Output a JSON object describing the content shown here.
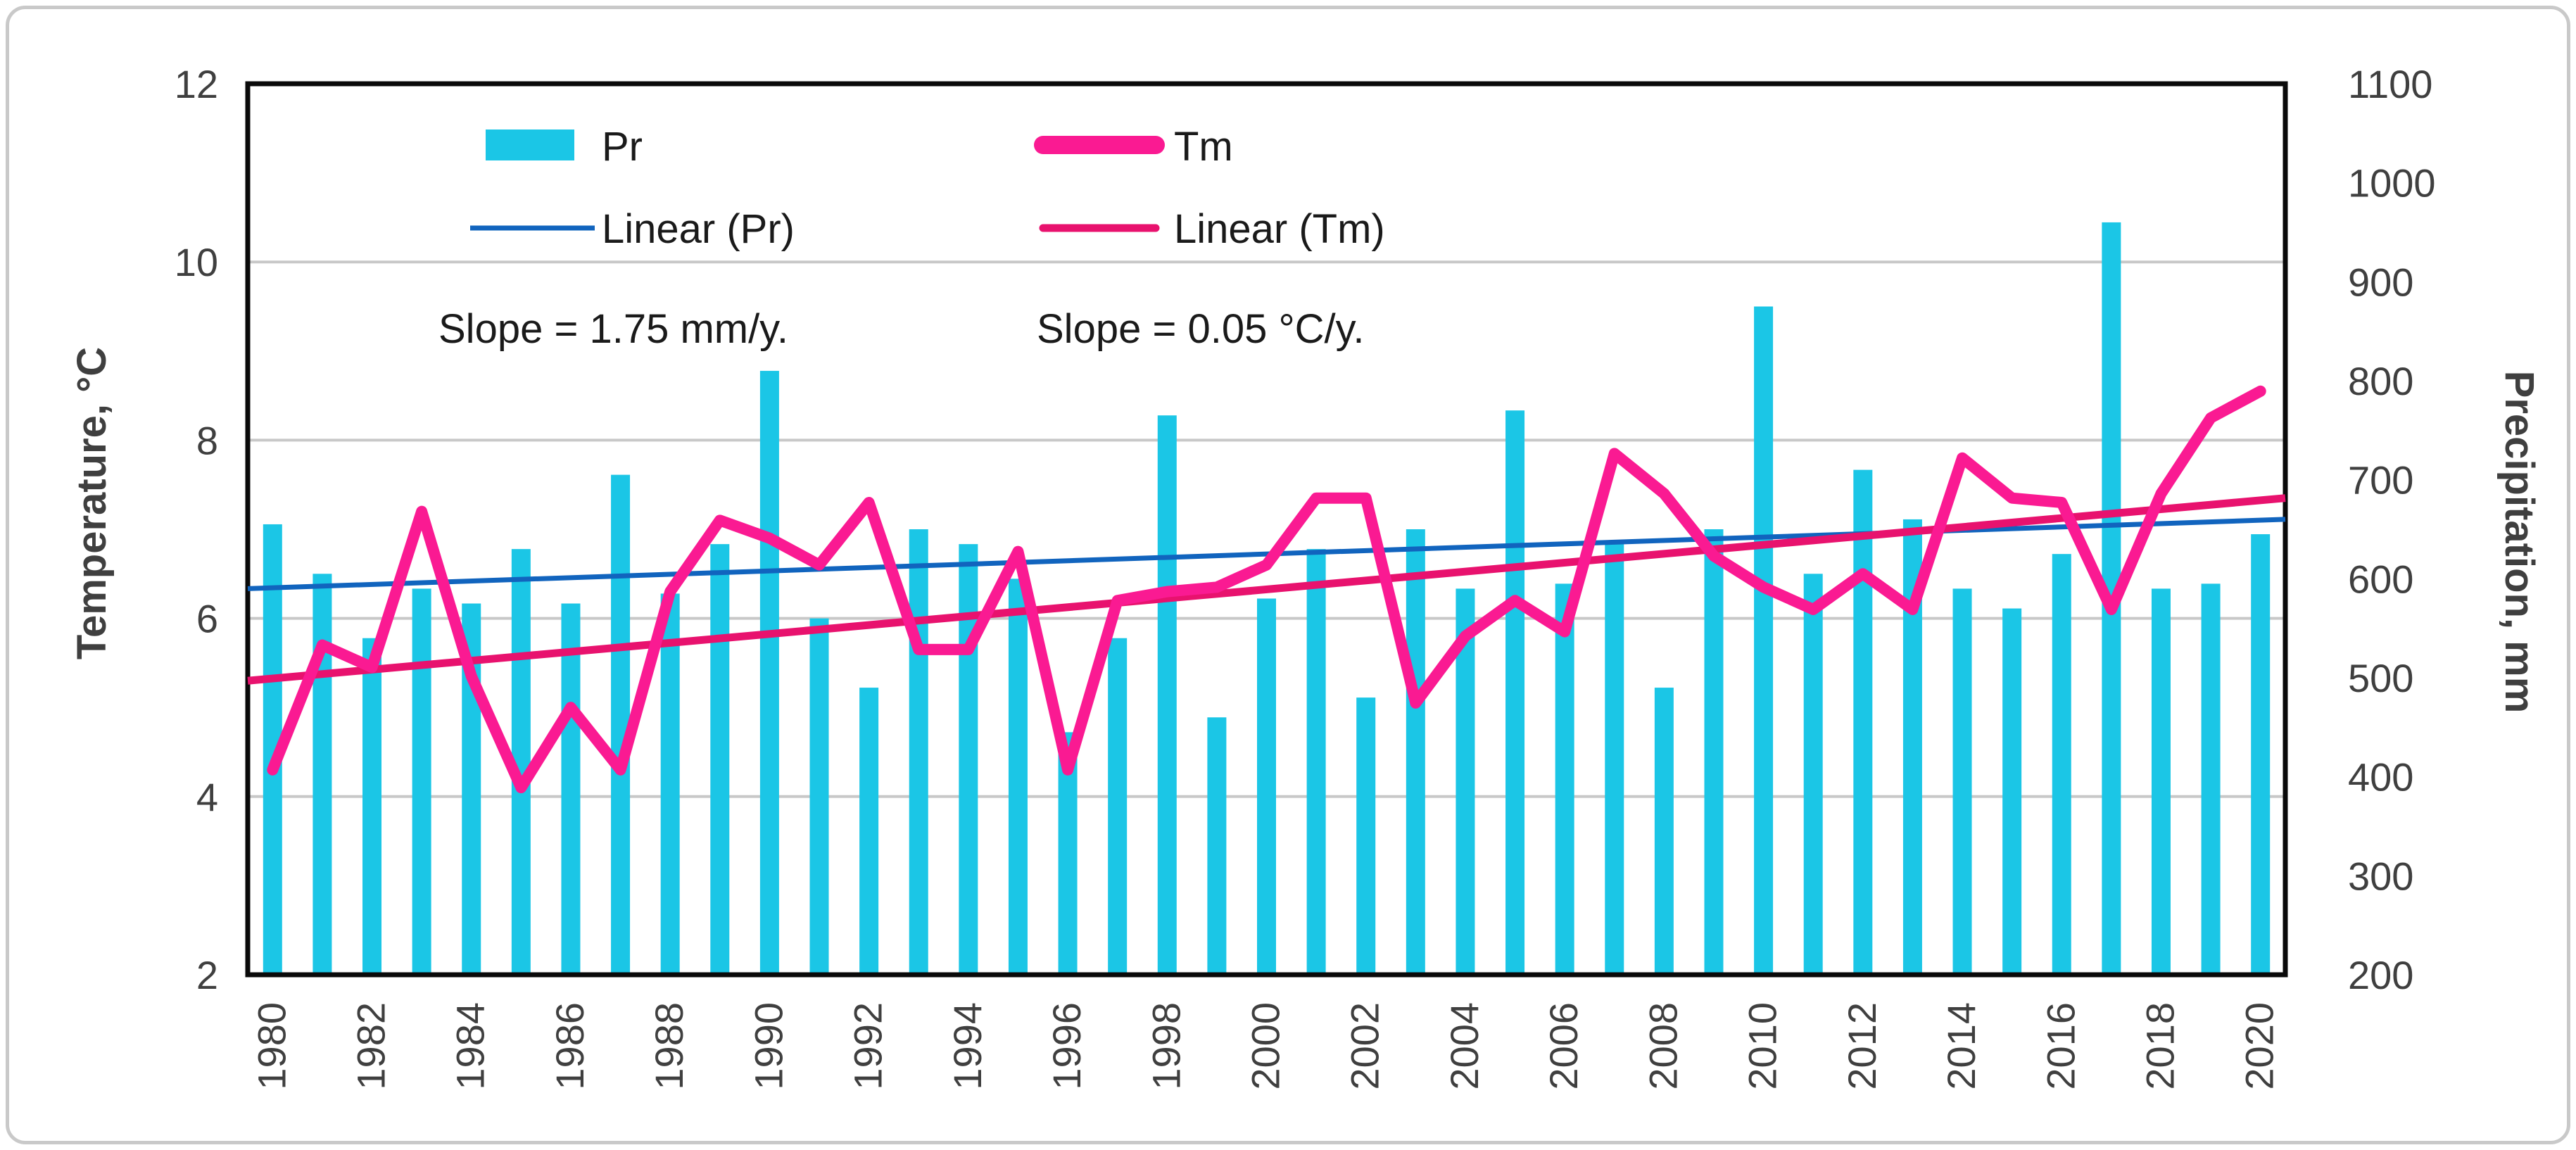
{
  "figure": {
    "background": "#ffffff",
    "border_color": "#c9c9c9"
  },
  "colors": {
    "bar": "#1bc6e6",
    "tm_line": "#fa1a92",
    "linear_pr": "#1164be",
    "linear_tm": "#e8126e",
    "gridline": "#c8c8c8",
    "frame": "#0a0a0a",
    "tick_text": "#3f3f3f",
    "annotation_text": "#1a1a1a"
  },
  "legend": {
    "pr_label": "Pr",
    "tm_label": "Tm",
    "linear_pr_label": "Linear (Pr)",
    "linear_tm_label": "Linear (Tm)"
  },
  "annotations": {
    "pr_slope_text": "Slope = 1.75 mm/y.",
    "tm_slope_text": "Slope = 0.05 °C/y."
  },
  "axes": {
    "left_title": "Temperature, °C",
    "right_title": "Precipitation, mm"
  },
  "chart_data": {
    "type": "combo-bar-line",
    "title": "",
    "x": [
      1980,
      1981,
      1982,
      1983,
      1984,
      1985,
      1986,
      1987,
      1988,
      1989,
      1990,
      1991,
      1992,
      1993,
      1994,
      1995,
      1996,
      1997,
      1998,
      1999,
      2000,
      2001,
      2002,
      2003,
      2004,
      2005,
      2006,
      2007,
      2008,
      2009,
      2010,
      2011,
      2012,
      2013,
      2014,
      2015,
      2016,
      2017,
      2018,
      2019,
      2020
    ],
    "x_tick_step": 2,
    "left_axis": {
      "label": "Temperature, °C",
      "min": 2,
      "max": 12,
      "ticks": [
        2,
        4,
        6,
        8,
        10,
        12
      ]
    },
    "right_axis": {
      "label": "Precipitation, mm",
      "min": 200,
      "max": 1100,
      "ticks": [
        200,
        300,
        400,
        500,
        600,
        700,
        800,
        900,
        1000,
        1100
      ]
    },
    "gridlines_at_temp": [
      4,
      6,
      8,
      10
    ],
    "grid": true,
    "legend_position": "top-inside",
    "series": [
      {
        "name": "Pr",
        "type": "bar",
        "axis": "right",
        "unit": "mm",
        "values": [
          655,
          605,
          540,
          590,
          575,
          630,
          575,
          705,
          585,
          635,
          810,
          560,
          490,
          650,
          635,
          600,
          445,
          540,
          765,
          460,
          580,
          630,
          480,
          650,
          590,
          770,
          595,
          635,
          490,
          650,
          875,
          605,
          710,
          660,
          590,
          570,
          625,
          960,
          590,
          595,
          645
        ]
      },
      {
        "name": "Tm",
        "type": "line",
        "axis": "left",
        "unit": "°C",
        "values": [
          4.3,
          5.7,
          5.45,
          7.2,
          5.35,
          4.1,
          5.0,
          4.3,
          6.3,
          7.1,
          6.9,
          6.6,
          7.3,
          5.65,
          5.65,
          6.75,
          4.3,
          6.2,
          6.3,
          6.35,
          6.6,
          7.35,
          7.35,
          5.05,
          5.8,
          6.2,
          5.85,
          7.85,
          7.4,
          6.7,
          6.35,
          6.1,
          6.5,
          6.1,
          7.8,
          7.35,
          7.3,
          6.1,
          7.4,
          8.25,
          8.55
        ]
      },
      {
        "name": "Linear (Pr)",
        "type": "trendline",
        "axis": "right",
        "unit": "mm",
        "start_value": 590,
        "end_value": 660,
        "slope": "1.75 mm/y."
      },
      {
        "name": "Linear (Tm)",
        "type": "trendline",
        "axis": "left",
        "unit": "°C",
        "start_value": 5.3,
        "end_value": 7.35,
        "slope": "0.05 °C/y."
      }
    ]
  }
}
